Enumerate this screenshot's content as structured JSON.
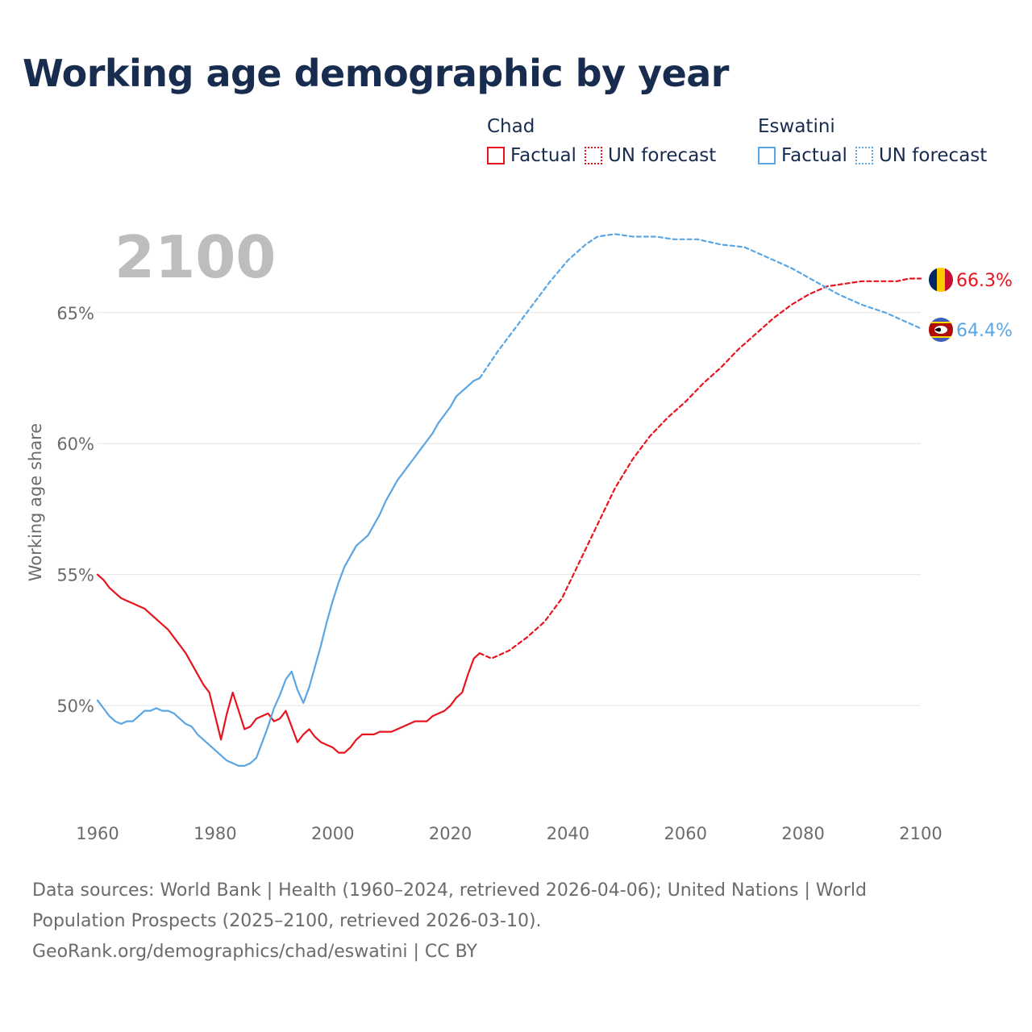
{
  "title": "Working age demographic by year",
  "legend": [
    {
      "country": "Chad",
      "factual_label": "Factual",
      "forecast_label": "UN forecast",
      "color": "#e8141d"
    },
    {
      "country": "Eswatini",
      "factual_label": "Factual",
      "forecast_label": "UN forecast",
      "color": "#5aa6e4"
    }
  ],
  "year_display": "2100",
  "end_labels": {
    "chad": "66.3%",
    "eswatini": "64.4%"
  },
  "chart_data": {
    "type": "line",
    "title": "Working age demographic by year",
    "xlabel": "",
    "ylabel": "Working age share",
    "xlim": [
      1960,
      2100
    ],
    "ylim": [
      45.973,
      67.947
    ],
    "x_ticks": [
      1960,
      1980,
      2000,
      2020,
      2040,
      2060,
      2080,
      2100
    ],
    "x_tick_labels": [
      "1960",
      "1980",
      "2000",
      "2020",
      "2040",
      "2060",
      "2080",
      "2100"
    ],
    "y_ticks": [
      50,
      55,
      60,
      65
    ],
    "y_tick_labels": [
      "50%",
      "55%",
      "60%",
      "65%"
    ],
    "grid": true,
    "series": [
      {
        "name": "Chad Factual",
        "color": "#e8141d",
        "style": "solid",
        "x": [
          1960,
          1961,
          1962,
          1963,
          1964,
          1965,
          1966,
          1967,
          1968,
          1969,
          1970,
          1971,
          1972,
          1973,
          1974,
          1975,
          1976,
          1977,
          1978,
          1979,
          1980,
          1981,
          1982,
          1983,
          1984,
          1985,
          1986,
          1987,
          1988,
          1989,
          1990,
          1991,
          1992,
          1993,
          1994,
          1995,
          1996,
          1997,
          1998,
          1999,
          2000,
          2001,
          2002,
          2003,
          2004,
          2005,
          2006,
          2007,
          2008,
          2009,
          2010,
          2011,
          2012,
          2013,
          2014,
          2015,
          2016,
          2017,
          2018,
          2019,
          2020,
          2021,
          2022,
          2023,
          2024,
          2025
        ],
        "y": [
          55.0,
          54.8,
          54.5,
          54.3,
          54.1,
          54.0,
          53.9,
          53.8,
          53.7,
          53.5,
          53.3,
          53.1,
          52.9,
          52.6,
          52.3,
          52.0,
          51.6,
          51.2,
          50.8,
          50.5,
          49.6,
          48.7,
          49.7,
          50.5,
          49.8,
          49.1,
          49.2,
          49.5,
          49.6,
          49.7,
          49.4,
          49.5,
          49.8,
          49.2,
          48.6,
          48.9,
          49.1,
          48.8,
          48.6,
          48.5,
          48.4,
          48.2,
          48.2,
          48.4,
          48.7,
          48.9,
          48.9,
          48.9,
          49.0,
          49.0,
          49.0,
          49.1,
          49.2,
          49.3,
          49.4,
          49.4,
          49.4,
          49.6,
          49.7,
          49.8,
          50.0,
          50.3,
          50.5,
          51.2,
          51.8,
          52.0
        ]
      },
      {
        "name": "Chad UN forecast",
        "color": "#e8141d",
        "style": "dashed",
        "x": [
          2025,
          2027,
          2030,
          2033,
          2036,
          2039,
          2042,
          2045,
          2048,
          2051,
          2054,
          2057,
          2060,
          2063,
          2066,
          2069,
          2072,
          2075,
          2078,
          2081,
          2084,
          2087,
          2090,
          2093,
          2096,
          2098,
          2100
        ],
        "y": [
          52.0,
          51.8,
          52.1,
          52.6,
          53.2,
          54.1,
          55.5,
          56.9,
          58.3,
          59.4,
          60.3,
          61.0,
          61.6,
          62.3,
          62.9,
          63.6,
          64.2,
          64.8,
          65.3,
          65.7,
          66.0,
          66.1,
          66.2,
          66.2,
          66.2,
          66.3,
          66.3
        ]
      },
      {
        "name": "Eswatini Factual",
        "color": "#5aa6e4",
        "style": "solid",
        "x": [
          1960,
          1961,
          1962,
          1963,
          1964,
          1965,
          1966,
          1967,
          1968,
          1969,
          1970,
          1971,
          1972,
          1973,
          1974,
          1975,
          1976,
          1977,
          1978,
          1979,
          1980,
          1981,
          1982,
          1983,
          1984,
          1985,
          1986,
          1987,
          1988,
          1989,
          1990,
          1991,
          1992,
          1993,
          1994,
          1995,
          1996,
          1997,
          1998,
          1999,
          2000,
          2001,
          2002,
          2003,
          2004,
          2005,
          2006,
          2007,
          2008,
          2009,
          2010,
          2011,
          2012,
          2013,
          2014,
          2015,
          2016,
          2017,
          2018,
          2019,
          2020,
          2021,
          2022,
          2023,
          2024,
          2025
        ],
        "y": [
          50.2,
          49.9,
          49.6,
          49.4,
          49.3,
          49.4,
          49.4,
          49.6,
          49.8,
          49.8,
          49.9,
          49.8,
          49.8,
          49.7,
          49.5,
          49.3,
          49.2,
          48.9,
          48.7,
          48.5,
          48.3,
          48.1,
          47.9,
          47.8,
          47.7,
          47.7,
          47.8,
          48.0,
          48.6,
          49.2,
          49.9,
          50.4,
          51.0,
          51.3,
          50.6,
          50.1,
          50.7,
          51.5,
          52.3,
          53.2,
          54.0,
          54.7,
          55.3,
          55.7,
          56.1,
          56.3,
          56.5,
          56.9,
          57.3,
          57.8,
          58.2,
          58.6,
          58.9,
          59.2,
          59.5,
          59.8,
          60.1,
          60.4,
          60.8,
          61.1,
          61.4,
          61.8,
          62.0,
          62.2,
          62.4,
          62.5
        ]
      },
      {
        "name": "Eswatini UN forecast",
        "color": "#5aa6e4",
        "style": "dashed",
        "x": [
          2025,
          2028,
          2031,
          2034,
          2037,
          2040,
          2043,
          2045,
          2048,
          2051,
          2055,
          2058,
          2062,
          2066,
          2070,
          2074,
          2078,
          2082,
          2086,
          2090,
          2094,
          2098,
          2100
        ],
        "y": [
          62.5,
          63.5,
          64.4,
          65.3,
          66.2,
          67.0,
          67.6,
          67.9,
          68.0,
          67.9,
          67.9,
          67.8,
          67.8,
          67.6,
          67.5,
          67.1,
          66.7,
          66.2,
          65.7,
          65.3,
          65.0,
          64.6,
          64.4
        ]
      }
    ]
  },
  "footer": {
    "line1": "Data sources: World Bank | Health (1960–2024, retrieved 2026-04-06); United Nations | World Population Prospects (2025–2100, retrieved 2026-03-10).",
    "line2": "GeoRank.org/demographics/chad/eswatini | CC BY"
  }
}
